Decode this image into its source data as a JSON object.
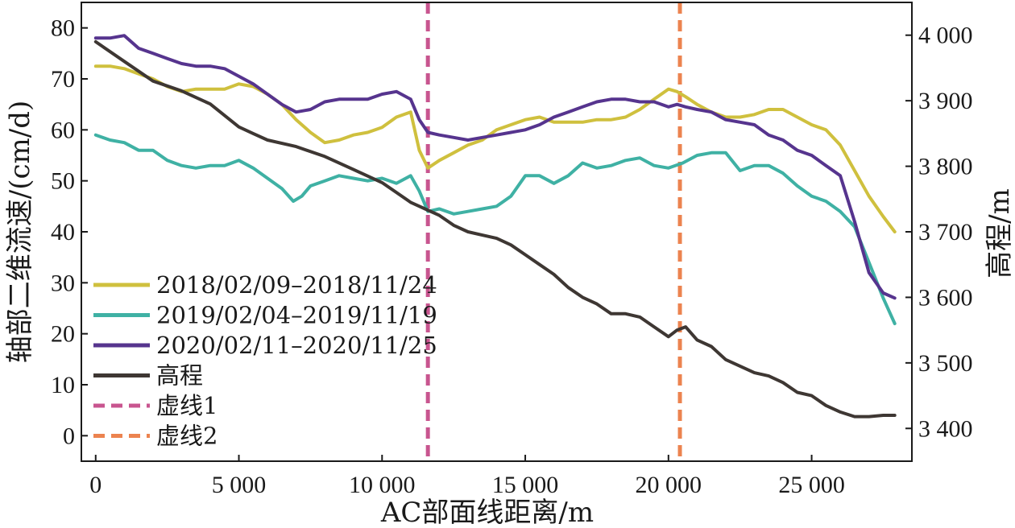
{
  "chart_data": {
    "type": "line",
    "xlabel": "AC部面线距离/m",
    "ylabel": "轴部二维流速/(cm/d)",
    "y2label": "高程/m",
    "xlim": [
      -500,
      28500
    ],
    "ylim": [
      -5,
      85
    ],
    "y2lim": [
      3350,
      4050
    ],
    "x_ticks": [
      0,
      5000,
      10000,
      15000,
      20000,
      25000
    ],
    "x_tick_labels": [
      "0",
      "5 000",
      "10 000",
      "15 000",
      "20 000",
      "25 000"
    ],
    "y_ticks": [
      0,
      10,
      20,
      30,
      40,
      50,
      60,
      70,
      80
    ],
    "y_tick_labels": [
      "0",
      "10",
      "20",
      "30",
      "40",
      "50",
      "60",
      "70",
      "80"
    ],
    "y2_ticks": [
      3400,
      3500,
      3600,
      3700,
      3800,
      3900,
      4000
    ],
    "y2_tick_labels": [
      "3 400",
      "3 500",
      "3 600",
      "3 700",
      "3 800",
      "3 900",
      "4 000"
    ],
    "grid": false,
    "legend_position": "lower-left",
    "series": [
      {
        "name": "2018/02/09–2018/11/24",
        "axis": "left",
        "color": "#cfc03e",
        "x": [
          0,
          500,
          1000,
          1500,
          2000,
          2500,
          3000,
          3500,
          4000,
          4500,
          5000,
          5500,
          6000,
          6500,
          7000,
          7500,
          8000,
          8500,
          9000,
          9500,
          10000,
          10500,
          11000,
          11300,
          11600,
          12000,
          12500,
          13000,
          13500,
          14000,
          14500,
          15000,
          15500,
          16000,
          16500,
          17000,
          17500,
          18000,
          18500,
          19000,
          19500,
          20000,
          20300,
          20600,
          21000,
          21500,
          22000,
          22500,
          23000,
          23500,
          24000,
          24500,
          25000,
          25500,
          26000,
          26500,
          27000,
          27500,
          27900
        ],
        "values": [
          72.5,
          72.5,
          72,
          71,
          70,
          68.5,
          67.5,
          68,
          68,
          68,
          69,
          68.5,
          67,
          65,
          62,
          59.5,
          57.5,
          58,
          59,
          59.5,
          60.5,
          62.5,
          63.5,
          56,
          52.5,
          54,
          55.5,
          57,
          58,
          60,
          61,
          62,
          62.5,
          61.5,
          61.5,
          61.5,
          62,
          62,
          62.5,
          64,
          66,
          68,
          67.5,
          66.5,
          65,
          63.5,
          62.5,
          62.5,
          63,
          64,
          64,
          62.5,
          61,
          60,
          57,
          52,
          47,
          43,
          40
        ]
      },
      {
        "name": "2019/02/04–2019/11/19",
        "axis": "left",
        "color": "#3fb1a4",
        "x": [
          0,
          500,
          1000,
          1500,
          2000,
          2500,
          3000,
          3500,
          4000,
          4500,
          5000,
          5500,
          6000,
          6500,
          6900,
          7200,
          7500,
          8000,
          8500,
          9000,
          9500,
          10000,
          10500,
          11000,
          11300,
          11600,
          12000,
          12500,
          13000,
          13500,
          14000,
          14500,
          15000,
          15500,
          16000,
          16500,
          17000,
          17500,
          18000,
          18500,
          19000,
          19500,
          20000,
          20500,
          21000,
          21500,
          22000,
          22500,
          23000,
          23500,
          24000,
          24500,
          25000,
          25500,
          26000,
          26500,
          27000,
          27500,
          27900
        ],
        "values": [
          59,
          58,
          57.5,
          56,
          56,
          54,
          53,
          52.5,
          53,
          53,
          54,
          52.5,
          50.5,
          48.5,
          46,
          47,
          49,
          50,
          51,
          50.5,
          50,
          50.5,
          49.5,
          51,
          48,
          44,
          44.5,
          43.5,
          44,
          44.5,
          45,
          47,
          51,
          51,
          49.5,
          51,
          53.5,
          52.5,
          53,
          54,
          54.5,
          53,
          52.5,
          53.5,
          55,
          55.5,
          55.5,
          52,
          53,
          53,
          51.5,
          49,
          47,
          46,
          44,
          41,
          34,
          27,
          22
        ]
      },
      {
        "name": "2020/02/11–2020/11/25",
        "axis": "left",
        "color": "#56348e",
        "x": [
          0,
          500,
          1000,
          1500,
          2000,
          2500,
          3000,
          3500,
          4000,
          4500,
          5000,
          5500,
          6000,
          6500,
          7000,
          7500,
          8000,
          8500,
          9000,
          9500,
          10000,
          10500,
          11000,
          11300,
          11600,
          12000,
          12500,
          13000,
          13500,
          14000,
          14500,
          15000,
          15500,
          16000,
          16500,
          17000,
          17500,
          18000,
          18500,
          19000,
          19500,
          20000,
          20300,
          20600,
          21000,
          21500,
          22000,
          22500,
          23000,
          23500,
          24000,
          24500,
          25000,
          25500,
          26000,
          26500,
          27000,
          27500,
          27900
        ],
        "values": [
          78,
          78,
          78.5,
          76,
          75,
          74,
          73,
          72.5,
          72.5,
          72,
          70.5,
          69,
          67,
          65,
          63.5,
          64,
          65.5,
          66,
          66,
          66,
          67,
          67.5,
          66,
          62,
          59.5,
          59,
          58.5,
          58,
          58.5,
          59,
          59.5,
          60,
          61,
          62.5,
          63.5,
          64.5,
          65.5,
          66,
          66,
          65.5,
          65.5,
          64.5,
          65,
          64.5,
          64,
          63.5,
          62,
          61.5,
          61,
          59,
          58,
          56,
          55,
          53,
          51,
          42,
          32,
          28,
          27
        ]
      },
      {
        "name": "高程",
        "axis": "right",
        "color": "#3e3733",
        "x": [
          0,
          1000,
          2000,
          3000,
          4000,
          5000,
          5500,
          6000,
          7000,
          8000,
          9000,
          10000,
          10500,
          11000,
          11500,
          12000,
          12500,
          13000,
          13500,
          14000,
          14500,
          15000,
          15500,
          16000,
          16500,
          17000,
          17500,
          18000,
          18500,
          19000,
          19500,
          20000,
          20300,
          20600,
          21000,
          21500,
          22000,
          22500,
          23000,
          23500,
          24000,
          24500,
          25000,
          25500,
          26000,
          26500,
          27000,
          27500,
          27900
        ],
        "values": [
          3990,
          3960,
          3930,
          3915,
          3895,
          3860,
          3850,
          3840,
          3830,
          3815,
          3795,
          3775,
          3760,
          3745,
          3735,
          3725,
          3710,
          3700,
          3695,
          3690,
          3680,
          3665,
          3650,
          3635,
          3615,
          3600,
          3590,
          3575,
          3575,
          3570,
          3555,
          3540,
          3550,
          3555,
          3535,
          3525,
          3505,
          3495,
          3485,
          3480,
          3470,
          3455,
          3450,
          3435,
          3425,
          3418,
          3418,
          3420,
          3420
        ]
      }
    ],
    "reference_lines": [
      {
        "name": "虚线1",
        "x": 11600,
        "color": "#c8558f"
      },
      {
        "name": "虚线2",
        "x": 20400,
        "color": "#ec834f"
      }
    ]
  }
}
